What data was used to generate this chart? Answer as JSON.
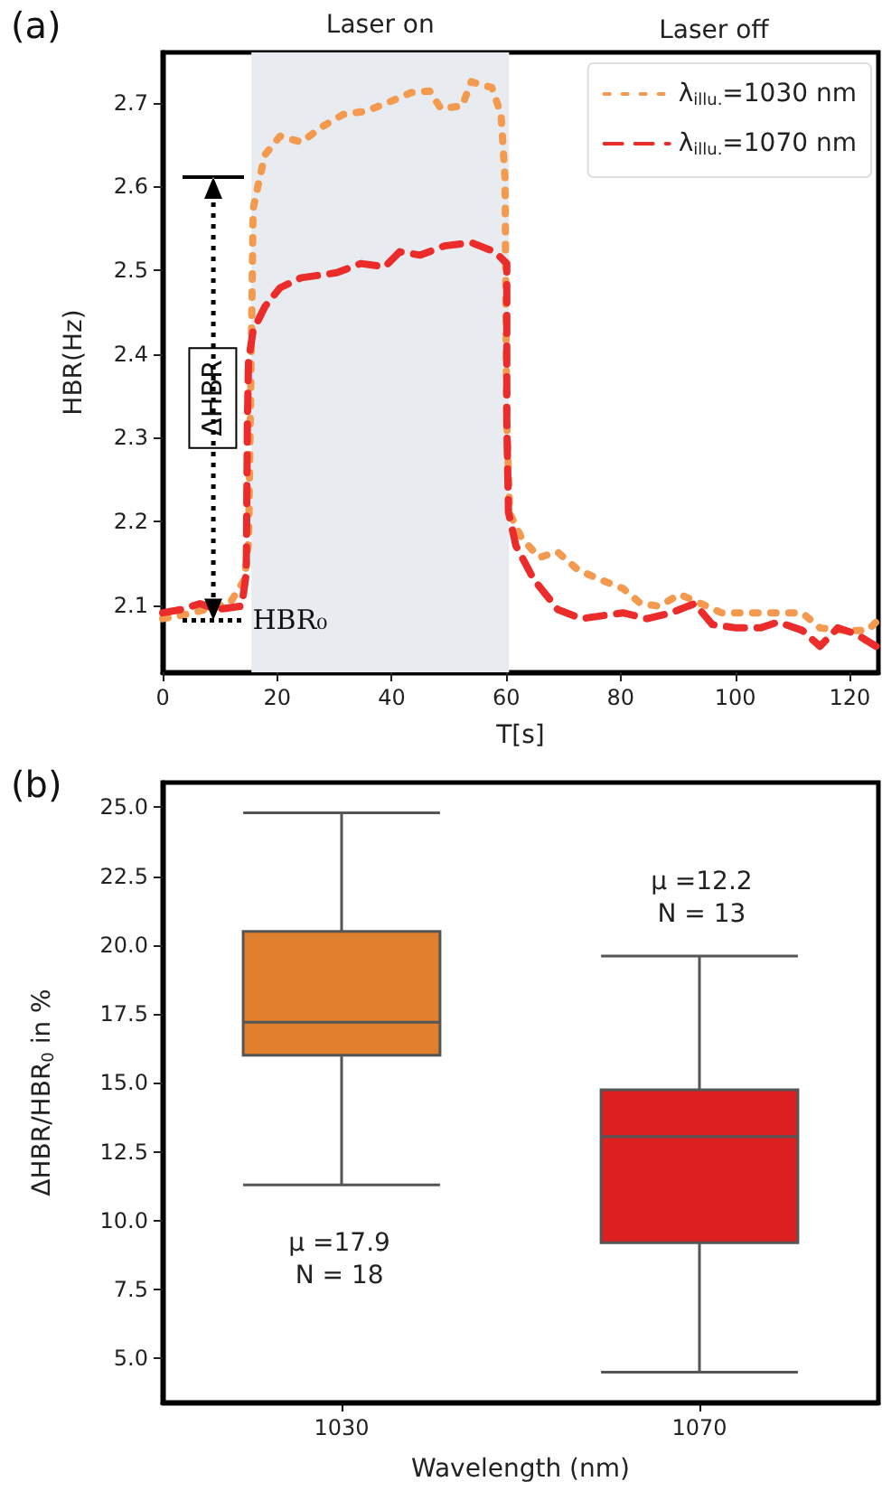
{
  "chart_data": [
    {
      "type": "line",
      "xlabel": "T[s]",
      "ylabel": "HBR(Hz)",
      "xlim": [
        0,
        125
      ],
      "ylim": [
        2.02,
        2.76
      ],
      "xticks": [
        0,
        20,
        40,
        60,
        80,
        100,
        120
      ],
      "yticks": [
        2.1,
        2.2,
        2.3,
        2.4,
        2.5,
        2.6,
        2.7
      ],
      "grid": false,
      "legend": "top right",
      "marker": "none",
      "annotations": [
        "(a)",
        "Laser off",
        "ΔHBR",
        "HBR₀"
      ],
      "bands": [
        {
          "axis": "x",
          "from": 15.5,
          "to": 60.5,
          "label": "Laser on",
          "color": "#e8ebef"
        }
      ],
      "series": [
        {
          "name": "λ$_{illu.}$=1030 nm",
          "color": "#f39a4e",
          "line_style": "dotted",
          "x": [
            0,
            3.3,
            7.5,
            11.7,
            14.3,
            15,
            15.3,
            15.6,
            15.8,
            16.9,
            17.9,
            20.5,
            24.2,
            27.8,
            31.5,
            35.6,
            39.3,
            43.4,
            46.6,
            48.6,
            52.3,
            53.9,
            57.5,
            59.1,
            59.8,
            59.9,
            60.1,
            60.6,
            62.7,
            65.8,
            68.9,
            72.6,
            76.3,
            80.4,
            83.5,
            86.7,
            90.3,
            94,
            97.6,
            103.3,
            107.5,
            111.7,
            114.8,
            119,
            123.1,
            124.6
          ],
          "values": [
            2.084,
            2.088,
            2.095,
            2.102,
            2.131,
            2.175,
            2.32,
            2.465,
            2.573,
            2.609,
            2.638,
            2.66,
            2.653,
            2.671,
            2.686,
            2.69,
            2.7,
            2.712,
            2.714,
            2.693,
            2.696,
            2.725,
            2.718,
            2.686,
            2.609,
            2.5,
            2.32,
            2.21,
            2.18,
            2.157,
            2.164,
            2.142,
            2.131,
            2.12,
            2.102,
            2.099,
            2.113,
            2.102,
            2.091,
            2.091,
            2.091,
            2.091,
            2.073,
            2.07,
            2.07,
            2.08
          ]
        },
        {
          "name": "λ$_{illu.}$=1070 nm",
          "color": "#ec2b2b",
          "line_style": "dashed",
          "x": [
            0,
            3.3,
            6.5,
            9.6,
            13.8,
            14.6,
            14.8,
            15,
            15.8,
            17.9,
            20.5,
            24.2,
            30.4,
            34.6,
            38.8,
            41.4,
            45,
            49.2,
            53.9,
            58,
            60.1,
            60.1,
            60.4,
            61.7,
            64.8,
            69,
            73.1,
            77.3,
            80.4,
            84.6,
            88.8,
            92.9,
            96,
            100.2,
            104.4,
            107.5,
            111.7,
            114.8,
            117.9,
            121,
            124.6
          ],
          "values": [
            2.091,
            2.095,
            2.102,
            2.095,
            2.099,
            2.138,
            2.32,
            2.392,
            2.428,
            2.457,
            2.479,
            2.491,
            2.497,
            2.508,
            2.504,
            2.522,
            2.518,
            2.529,
            2.533,
            2.522,
            2.508,
            2.32,
            2.211,
            2.171,
            2.131,
            2.095,
            2.084,
            2.088,
            2.091,
            2.084,
            2.091,
            2.102,
            2.077,
            2.073,
            2.073,
            2.08,
            2.07,
            2.051,
            2.073,
            2.066,
            2.051
          ]
        }
      ]
    },
    {
      "type": "box",
      "xlabel": "Wavelength (nm)",
      "ylabel": "ΔHBR/HBR$_{0}$ in %",
      "categories": [
        "1030",
        "1070"
      ],
      "colors": [
        "#e07f2e",
        "#dc1f1f"
      ],
      "ylim": [
        3.4,
        25.9
      ],
      "yticks": [
        {
          "value": 5,
          "label": "5.0"
        },
        {
          "value": 7.5,
          "label": "7.5"
        },
        {
          "value": 10,
          "label": "10.0"
        },
        {
          "value": 12.5,
          "label": "12.5"
        },
        {
          "value": 15,
          "label": "15.0"
        },
        {
          "value": 17.5,
          "label": "17.5"
        },
        {
          "value": 20,
          "label": "20.0"
        },
        {
          "value": 22.5,
          "label": "22.5"
        },
        {
          "value": 25,
          "label": "25.0"
        }
      ],
      "grid": false,
      "annotations": [
        "(b)",
        "μ =17.9\nN = 18",
        "μ =12.2\nN = 13"
      ],
      "boxes": [
        {
          "low": 11.3,
          "q1": 16.0,
          "median": 17.2,
          "q3": 20.5,
          "high": 24.8
        },
        {
          "low": 4.5,
          "q1": 9.2,
          "median": 13.05,
          "q3": 14.75,
          "high": 19.6
        }
      ]
    }
  ]
}
